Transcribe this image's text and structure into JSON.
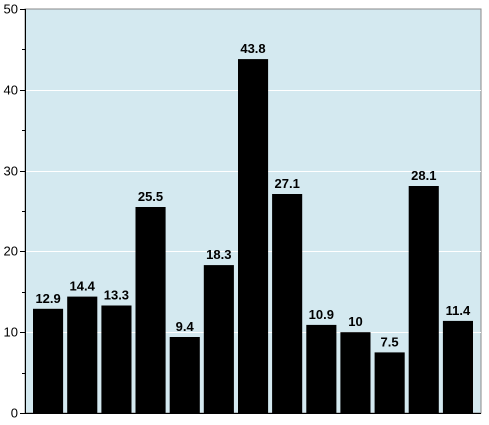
{
  "chart_data": {
    "type": "bar",
    "values": [
      12.9,
      14.4,
      13.3,
      25.5,
      9.4,
      18.3,
      43.8,
      27.1,
      10.9,
      10,
      7.5,
      28.1,
      11.4
    ],
    "data_labels": [
      "12.9",
      "14.4",
      "13.3",
      "25.5",
      "9.4",
      "18.3",
      "43.8",
      "27.1",
      "10.9",
      "10",
      "7.5",
      "28.1",
      "11.4"
    ],
    "y_ticks": [
      "0",
      "10",
      "20",
      "30",
      "40",
      "50"
    ],
    "ylim": [
      0,
      50
    ],
    "grid": true,
    "colors": {
      "plot_background": "#d4e9f0",
      "bar": "#000000",
      "gridline": "#ffffff",
      "axis": "#000000"
    }
  }
}
